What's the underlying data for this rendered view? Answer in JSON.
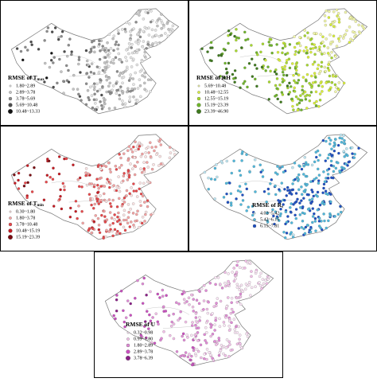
{
  "panels": [
    {
      "title": "RMSE of T",
      "title_sub": "max",
      "classes": [
        {
          "label": "1.80~2.89",
          "color": "#e6e6e6"
        },
        {
          "label": "2.89~3.78",
          "color": "#c4c4c4"
        },
        {
          "label": "3.78~5.69",
          "color": "#8c8c8c"
        },
        {
          "label": "5.69~10.48",
          "color": "#4d4d4d"
        },
        {
          "label": "10.48~13.33",
          "color": "#111111"
        }
      ]
    },
    {
      "title": "RMSE of RH",
      "classes": [
        {
          "label": "5.69~10.48",
          "color": "#f2f7a8"
        },
        {
          "label": "10.48~12.55",
          "color": "#d9ef3a"
        },
        {
          "label": "12.55~15.19",
          "color": "#a8d92e"
        },
        {
          "label": "15.19~23.39",
          "color": "#6fb52a"
        },
        {
          "label": "23.39~46.90",
          "color": "#3f7a1e"
        }
      ]
    },
    {
      "title": "RMSE of T",
      "title_sub": "min",
      "classes": [
        {
          "label": "0.30~1.80",
          "color": "#fbe3e3"
        },
        {
          "label": "1.80~3.78",
          "color": "#f4a3a3"
        },
        {
          "label": "3.78~10.48",
          "color": "#e8474a"
        },
        {
          "label": "10.48~15.19",
          "color": "#c41a22"
        },
        {
          "label": "15.19~23.39",
          "color": "#7a0a10"
        }
      ]
    },
    {
      "title": "RMSE of R",
      "title_sub": "s",
      "classes": [
        {
          "label": "4.02~5.42",
          "color": "#bfe6f2"
        },
        {
          "label": "5.42~6.15",
          "color": "#4fb8dc"
        },
        {
          "label": "6.15~7.81",
          "color": "#1d4fc4"
        }
      ]
    },
    {
      "title": "RMSE of U",
      "classes": [
        {
          "label": "0.32~0.98",
          "color": "#fbe6f6"
        },
        {
          "label": "0.99~1.80",
          "color": "#f2bfe8"
        },
        {
          "label": "1.80~2.89",
          "color": "#e08ad6"
        },
        {
          "label": "2.89~3.78",
          "color": "#c94fbf"
        },
        {
          "label": "3.78~6.39",
          "color": "#8a1f86"
        }
      ]
    }
  ]
}
